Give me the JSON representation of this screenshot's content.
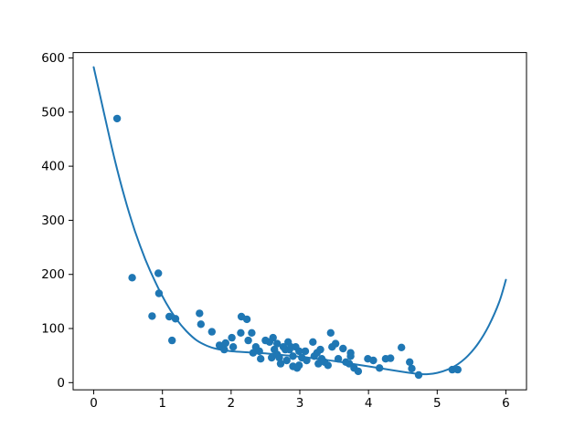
{
  "figure": {
    "background": "#ffffff",
    "title": ""
  },
  "chart_data": {
    "type": "scatter",
    "title": "",
    "xlabel": "",
    "ylabel": "",
    "legend": null,
    "grid": false,
    "xlim": [
      -0.3,
      6.3
    ],
    "ylim": [
      -13.3,
      610
    ],
    "xticks": [
      0,
      1,
      2,
      3,
      4,
      5,
      6
    ],
    "yticks": [
      0,
      100,
      200,
      300,
      400,
      500,
      600
    ],
    "marker_color": "#1f77b4",
    "line_color": "#1f77b4",
    "axis_color": "#000000",
    "series": [
      {
        "name": "scatter-points",
        "type": "scatter",
        "points": [
          [
            0.34,
            488
          ],
          [
            0.56,
            194
          ],
          [
            0.85,
            123
          ],
          [
            0.95,
            165
          ],
          [
            0.94,
            202
          ],
          [
            1.1,
            122
          ],
          [
            1.19,
            118
          ],
          [
            1.14,
            78
          ],
          [
            1.54,
            128
          ],
          [
            1.56,
            108
          ],
          [
            1.72,
            94
          ],
          [
            1.83,
            69
          ],
          [
            1.9,
            61
          ],
          [
            1.92,
            73
          ],
          [
            2.01,
            83
          ],
          [
            2.03,
            66
          ],
          [
            2.14,
            92
          ],
          [
            2.15,
            122
          ],
          [
            2.23,
            117
          ],
          [
            2.25,
            78
          ],
          [
            2.3,
            92
          ],
          [
            2.32,
            55
          ],
          [
            2.36,
            66
          ],
          [
            2.41,
            58
          ],
          [
            2.43,
            44
          ],
          [
            2.5,
            78
          ],
          [
            2.56,
            75
          ],
          [
            2.59,
            46
          ],
          [
            2.61,
            83
          ],
          [
            2.63,
            61
          ],
          [
            2.67,
            72
          ],
          [
            2.67,
            52
          ],
          [
            2.7,
            46
          ],
          [
            2.72,
            35
          ],
          [
            2.76,
            66
          ],
          [
            2.79,
            61
          ],
          [
            2.81,
            41
          ],
          [
            2.83,
            75
          ],
          [
            2.85,
            61
          ],
          [
            2.87,
            66
          ],
          [
            2.9,
            49
          ],
          [
            2.9,
            30
          ],
          [
            2.94,
            66
          ],
          [
            2.96,
            27
          ],
          [
            2.99,
            58
          ],
          [
            2.99,
            32
          ],
          [
            3.03,
            46
          ],
          [
            3.08,
            58
          ],
          [
            3.1,
            41
          ],
          [
            3.19,
            75
          ],
          [
            3.21,
            49
          ],
          [
            3.25,
            55
          ],
          [
            3.3,
            61
          ],
          [
            3.32,
            44
          ],
          [
            3.27,
            35
          ],
          [
            3.36,
            38
          ],
          [
            3.41,
            32
          ],
          [
            3.45,
            92
          ],
          [
            3.47,
            66
          ],
          [
            3.52,
            72
          ],
          [
            3.56,
            44
          ],
          [
            3.63,
            63
          ],
          [
            3.67,
            38
          ],
          [
            3.74,
            55
          ],
          [
            3.74,
            49
          ],
          [
            3.72,
            35
          ],
          [
            3.79,
            27
          ],
          [
            3.85,
            21
          ],
          [
            3.99,
            44
          ],
          [
            4.07,
            41
          ],
          [
            4.16,
            27
          ],
          [
            4.25,
            44
          ],
          [
            4.32,
            45
          ],
          [
            4.48,
            65
          ],
          [
            4.6,
            38
          ],
          [
            4.63,
            26
          ],
          [
            4.73,
            14
          ],
          [
            5.22,
            24
          ],
          [
            5.3,
            24
          ]
        ]
      },
      {
        "name": "fit-curve",
        "type": "line",
        "points": [
          [
            0.0,
            583
          ],
          [
            0.15,
            498
          ],
          [
            0.3,
            415
          ],
          [
            0.45,
            342
          ],
          [
            0.6,
            280
          ],
          [
            0.75,
            228
          ],
          [
            0.9,
            185
          ],
          [
            1.05,
            148
          ],
          [
            1.2,
            118
          ],
          [
            1.35,
            95
          ],
          [
            1.5,
            78
          ],
          [
            1.65,
            68
          ],
          [
            1.8,
            62
          ],
          [
            2.0,
            58
          ],
          [
            2.25,
            56
          ],
          [
            2.5,
            54
          ],
          [
            2.75,
            51
          ],
          [
            3.0,
            48
          ],
          [
            3.25,
            44
          ],
          [
            3.5,
            40
          ],
          [
            3.75,
            35
          ],
          [
            4.0,
            30
          ],
          [
            4.25,
            25
          ],
          [
            4.5,
            20
          ],
          [
            4.7,
            16.5
          ],
          [
            4.85,
            15.5
          ],
          [
            5.0,
            18
          ],
          [
            5.15,
            24
          ],
          [
            5.3,
            34
          ],
          [
            5.45,
            50
          ],
          [
            5.6,
            73
          ],
          [
            5.75,
            105
          ],
          [
            5.9,
            148
          ],
          [
            6.0,
            190
          ]
        ]
      }
    ]
  }
}
